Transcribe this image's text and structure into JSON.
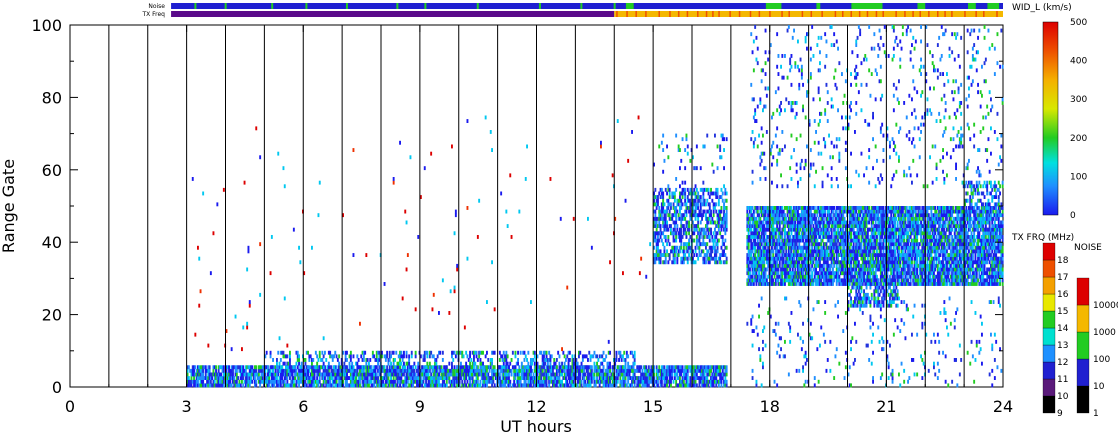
{
  "chart_data": {
    "type": "heatmap",
    "xlabel": "UT hours",
    "ylabel": "Range Gate",
    "xlim": [
      0,
      24
    ],
    "ylim": [
      0,
      100
    ],
    "x_ticks": [
      "0",
      "3",
      "6",
      "9",
      "12",
      "15",
      "18",
      "21",
      "24"
    ],
    "y_ticks": [
      "0",
      "20",
      "40",
      "60",
      "80",
      "100"
    ],
    "scan_boundaries_ut": [
      1,
      2,
      3,
      4,
      5,
      6,
      7,
      8,
      9,
      10,
      11,
      12,
      13,
      14,
      15,
      16,
      17,
      18,
      19,
      20,
      21,
      22,
      23
    ],
    "data_gap_ut": [
      16.9,
      17.3
    ],
    "strips": {
      "noise_label": "Noise",
      "txfreq_label": "TX Freq",
      "start_ut": 2.6,
      "noise_colors": {
        "base": "#1f1fd0",
        "accent": "#22cc22"
      },
      "txfreq_segments": [
        {
          "from": 2.6,
          "to": 14.0,
          "color": "#5a0a8a"
        },
        {
          "from": 14.0,
          "to": 24.0,
          "color": "#f4b800"
        }
      ]
    },
    "colorbar_width": {
      "title": "WID_L (km/s)",
      "min": 0,
      "max": 500,
      "ticks": [
        "0",
        "100",
        "200",
        "300",
        "400",
        "500"
      ]
    },
    "colorbar_txfreq": {
      "title": "TX FRQ (MHz)",
      "ticks": [
        "9",
        "10",
        "11",
        "12",
        "13",
        "14",
        "15",
        "16",
        "17",
        "18"
      ],
      "colors": [
        "#000000",
        "#5a1a7a",
        "#2020d0",
        "#1e90ff",
        "#00e0d0",
        "#22cc22",
        "#e8e800",
        "#f4a000",
        "#ee5000",
        "#dd0000"
      ]
    },
    "colorbar_noise": {
      "title": "NOISE",
      "ticks": [
        "1",
        "10",
        "100",
        "1000",
        "10000"
      ],
      "colors": [
        "#000000",
        "#2020d0",
        "#22cc22",
        "#f4b800",
        "#dd0000"
      ]
    },
    "scatter_regions": [
      {
        "ut": [
          3.0,
          16.9
        ],
        "gate": [
          0,
          6
        ],
        "density": 0.8,
        "palette": "blue"
      },
      {
        "ut": [
          5.0,
          14.5
        ],
        "gate": [
          3,
          10
        ],
        "density": 0.35,
        "palette": "blue"
      },
      {
        "ut": [
          3.0,
          15.0
        ],
        "gate": [
          10,
          75
        ],
        "density": 0.005,
        "palette": "red"
      },
      {
        "ut": [
          15.0,
          16.9
        ],
        "gate": [
          34,
          55
        ],
        "density": 0.55,
        "palette": "blue"
      },
      {
        "ut": [
          15.0,
          16.9
        ],
        "gate": [
          55,
          70
        ],
        "density": 0.06,
        "palette": "blue"
      },
      {
        "ut": [
          17.4,
          24.0
        ],
        "gate": [
          28,
          50
        ],
        "density": 0.85,
        "palette": "blue"
      },
      {
        "ut": [
          20.0,
          21.3
        ],
        "gate": [
          22,
          30
        ],
        "density": 0.55,
        "palette": "blue"
      },
      {
        "ut": [
          23.0,
          24.0
        ],
        "gate": [
          50,
          57
        ],
        "density": 0.4,
        "palette": "blue"
      },
      {
        "ut": [
          17.5,
          24.0
        ],
        "gate": [
          55,
          100
        ],
        "density": 0.07,
        "palette": "blue"
      },
      {
        "ut": [
          17.4,
          24.0
        ],
        "gate": [
          0,
          25
        ],
        "density": 0.05,
        "palette": "blue"
      }
    ]
  }
}
